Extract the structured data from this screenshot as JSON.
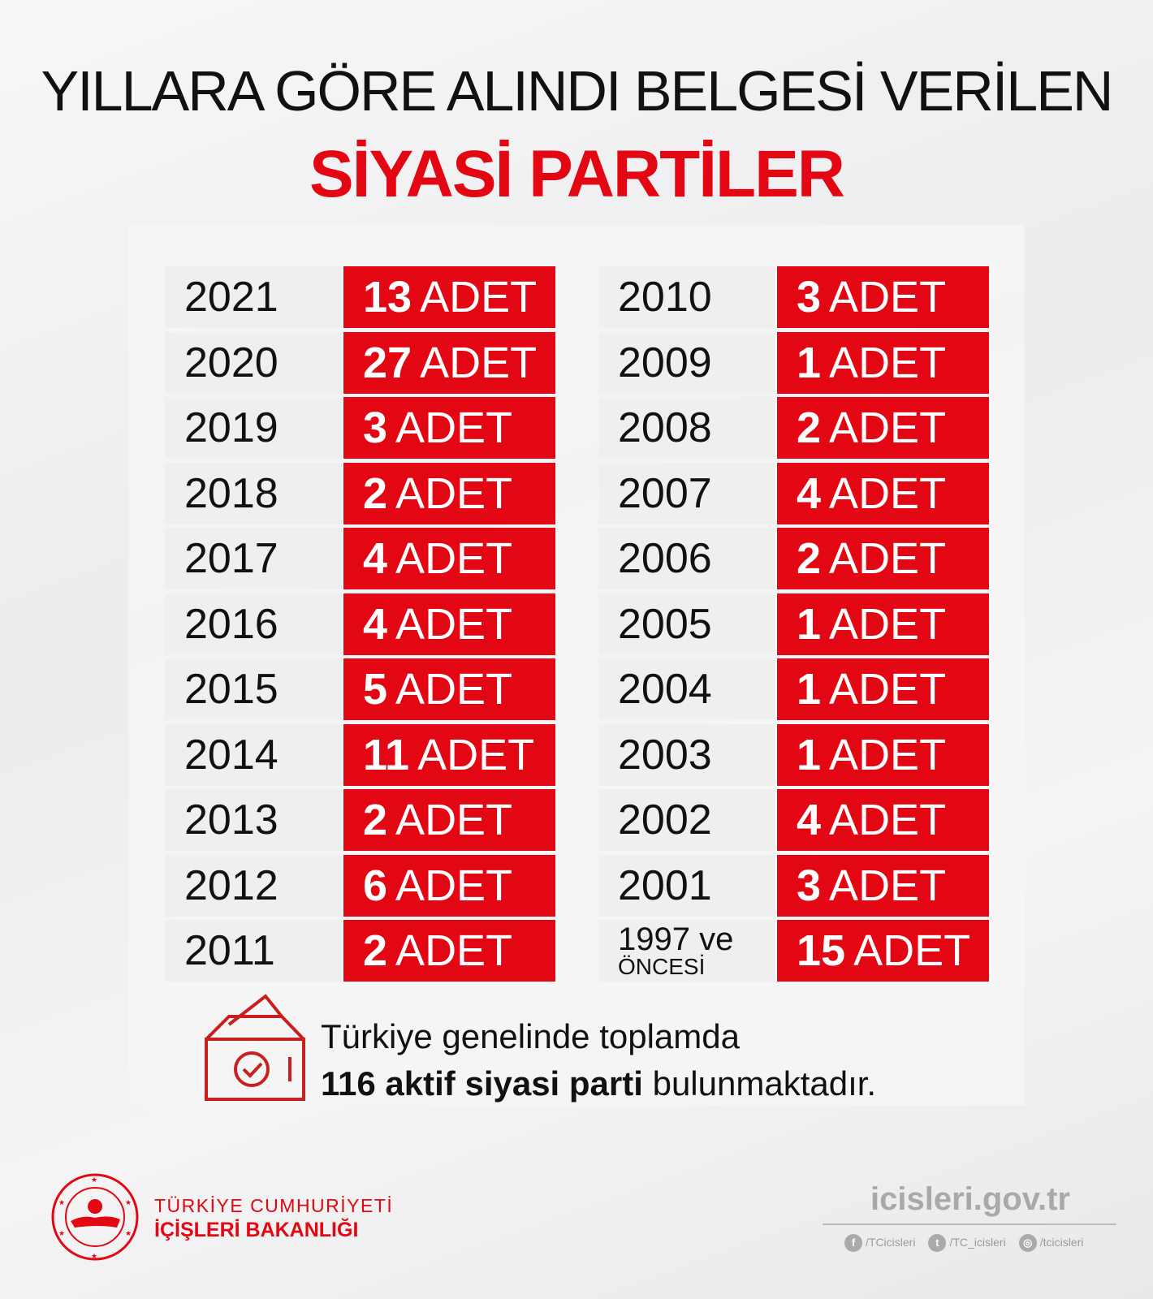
{
  "header": {
    "line1": "YILLARA GÖRE ALINDI BELGESİ VERİLEN",
    "line2": "SİYASİ PARTİLER"
  },
  "unit": "ADET",
  "left": [
    {
      "year": "2021",
      "count": "13"
    },
    {
      "year": "2020",
      "count": "27"
    },
    {
      "year": "2019",
      "count": "3"
    },
    {
      "year": "2018",
      "count": "2"
    },
    {
      "year": "2017",
      "count": "4"
    },
    {
      "year": "2016",
      "count": "4"
    },
    {
      "year": "2015",
      "count": "5"
    },
    {
      "year": "2014",
      "count": "11"
    },
    {
      "year": "2013",
      "count": "2"
    },
    {
      "year": "2012",
      "count": "6"
    },
    {
      "year": "2011",
      "count": "2"
    }
  ],
  "right": [
    {
      "year": "2010",
      "count": "3"
    },
    {
      "year": "2009",
      "count": "1"
    },
    {
      "year": "2008",
      "count": "2"
    },
    {
      "year": "2007",
      "count": "4"
    },
    {
      "year": "2006",
      "count": "2"
    },
    {
      "year": "2005",
      "count": "1"
    },
    {
      "year": "2004",
      "count": "1"
    },
    {
      "year": "2003",
      "count": "1"
    },
    {
      "year": "2002",
      "count": "4"
    },
    {
      "year": "2001",
      "count": "3"
    },
    {
      "year": "1997 ve",
      "year2": "ÖNCESİ",
      "count": "15"
    }
  ],
  "summary": {
    "line1": "Türkiye genelinde toplamda",
    "bold": "116 aktif siyasi parti",
    "rest": " bulunmaktadır."
  },
  "org": {
    "line1": "TÜRKİYE CUMHURİYETİ",
    "line2": "İÇİŞLERİ BAKANLIĞI",
    "seal_text": "TÜRKİYE CUMHURİYETİ İÇİŞLERİ BAKANLIĞI"
  },
  "footer": {
    "site": "icisleri.gov.tr",
    "facebook": "/TCicisleri",
    "twitter": "/TC_icisleri",
    "instagram": "/tcicisleri"
  },
  "colors": {
    "accent": "#e30613"
  },
  "icons": [
    "ballot-box-icon",
    "facebook-icon",
    "twitter-icon",
    "instagram-icon"
  ]
}
